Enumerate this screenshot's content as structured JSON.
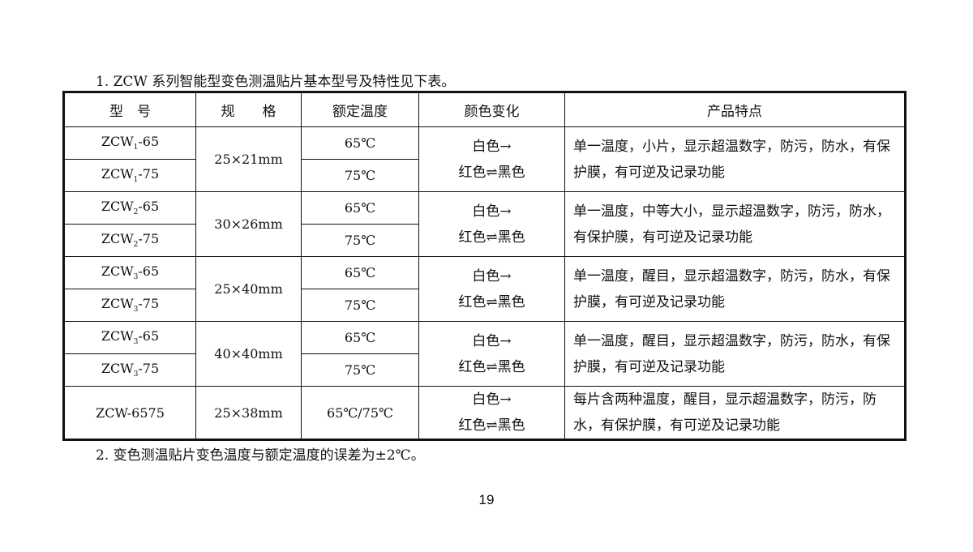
{
  "intro": "1. ZCW 系列智能型变色测温贴片基本型号及特性见下表。",
  "headers": [
    "型　号",
    "规　　格",
    "额定温度",
    "颜色变化",
    "产品特点"
  ],
  "groups": [
    {
      "rows": [
        {
          "base": "ZCW",
          "sub": "1",
          "suffix": "-65",
          "temp": "65℃"
        },
        {
          "base": "ZCW",
          "sub": "1",
          "suffix": "-75",
          "temp": "75℃"
        }
      ],
      "spec": "25×21mm",
      "color1": "白色→",
      "color2": "红色⇌黑色",
      "feature": "单一温度，小片，显示超温数字，防污，防水，有保护膜，有可逆及记录功能"
    },
    {
      "rows": [
        {
          "base": "ZCW",
          "sub": "2",
          "suffix": "-65",
          "temp": "65℃"
        },
        {
          "base": "ZCW",
          "sub": "2",
          "suffix": "-75",
          "temp": "75℃"
        }
      ],
      "spec": "30×26mm",
      "color1": "白色→",
      "color2": "红色⇌黑色",
      "feature": "单一温度，中等大小，显示超温数字，防污，防水，有保护膜，有可逆及记录功能"
    },
    {
      "rows": [
        {
          "base": "ZCW",
          "sub": "3",
          "suffix": "-65",
          "temp": "65℃"
        },
        {
          "base": "ZCW",
          "sub": "3",
          "suffix": "-75",
          "temp": "75℃"
        }
      ],
      "spec": "25×40mm",
      "color1": "白色→",
      "color2": "红色⇌黑色",
      "feature": "单一温度，醒目，显示超温数字，防污，防水，有保护膜，有可逆及记录功能"
    },
    {
      "rows": [
        {
          "base": "ZCW",
          "sub": "3",
          "suffix": "-65",
          "temp": "65℃"
        },
        {
          "base": "ZCW",
          "sub": "3",
          "suffix": "-75",
          "temp": "75℃"
        }
      ],
      "spec": "40×40mm",
      "color1": "白色→",
      "color2": "红色⇌黑色",
      "feature": "单一温度，醒目，显示超温数字，防污，防水，有保护膜，有可逆及记录功能"
    }
  ],
  "last": {
    "model": "ZCW-6575",
    "spec": "25×38mm",
    "temp": "65℃/75℃",
    "color1": "白色→",
    "color2": "红色⇌黑色",
    "feature": "每片含两种温度，醒目，显示超温数字，防污，防水，有保护膜，有可逆及记录功能"
  },
  "note": "2. 变色测温贴片变色温度与额定温度的误差为±2℃。",
  "page_number": "19"
}
